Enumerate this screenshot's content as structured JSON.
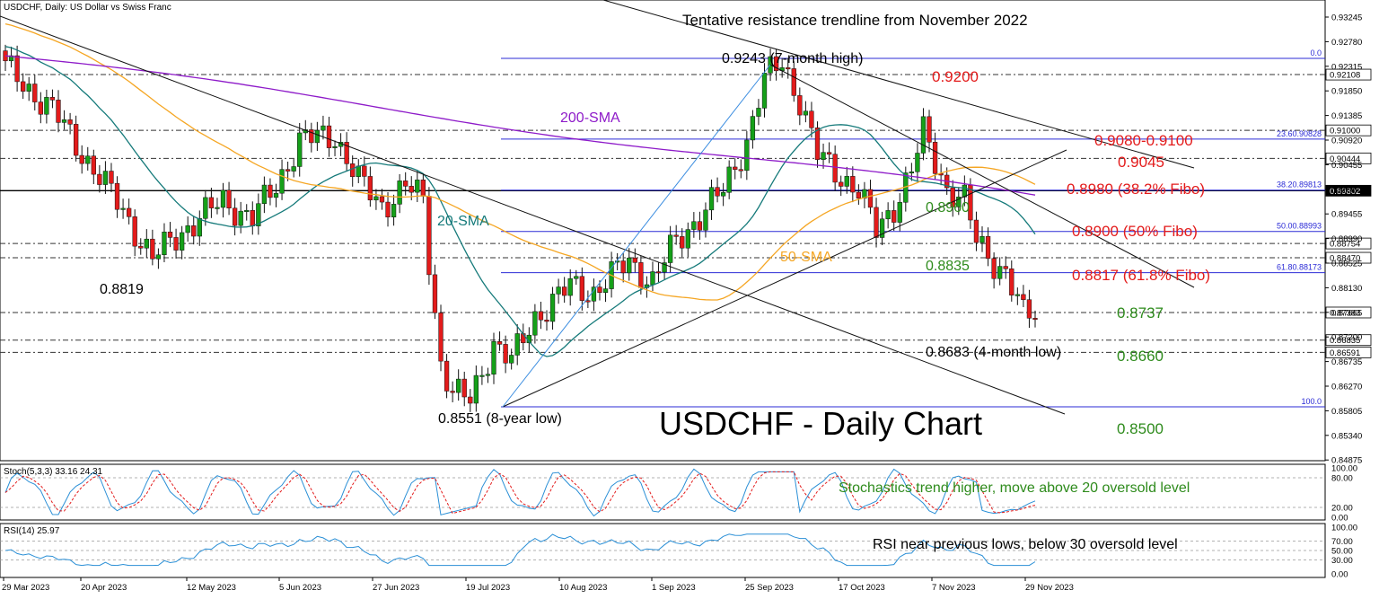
{
  "chart_data": {
    "type": "candlestick",
    "header": {
      "main": "USDCHF, Daily:  US Dollar vs Swiss Franc",
      "stoch": "Stoch(5,3,3) 33.16 24.31",
      "rsi": "RSI(14) 25.97"
    },
    "title": "USDCHF - Daily Chart",
    "ylim": [
      0.846,
      0.9265
    ],
    "price_ticks": [
      "0.93245",
      "0.92780",
      "0.92315",
      "0.91850",
      "0.91385",
      "0.90920",
      "0.90455",
      "0.89950",
      "0.89455",
      "0.88990",
      "0.88525",
      "0.88130",
      "0.87665",
      "0.87200",
      "0.86735",
      "0.86270",
      "0.85805",
      "0.85340",
      "0.84875"
    ],
    "x_labels": [
      "29 Mar 2023",
      "20 Apr 2023",
      "12 May 2023",
      "5 Jun 2023",
      "27 Jun 2023",
      "19 Jul 2023",
      "10 Aug 2023",
      "1 Sep 2023",
      "25 Sep 2023",
      "17 Oct 2023",
      "7 Nov 2023",
      "29 Nov 2023"
    ],
    "price_tags": [
      {
        "value": 0.92108,
        "label": "0.92108",
        "style": "dark"
      },
      {
        "value": 0.91,
        "label": "0.91000",
        "style": "dark"
      },
      {
        "value": 0.90444,
        "label": "0.90444",
        "style": "dark"
      },
      {
        "value": 0.89802,
        "label": "0.89802",
        "style": "black"
      },
      {
        "value": 0.88754,
        "label": "0.88754",
        "style": "dark"
      },
      {
        "value": 0.8847,
        "label": "0.88470",
        "style": "dark"
      },
      {
        "value": 0.87383,
        "label": "0.87383",
        "style": "dark"
      },
      {
        "value": 0.86835,
        "label": "0.86835",
        "style": "dark"
      },
      {
        "value": 0.86591,
        "label": "0.86591",
        "style": "dark"
      }
    ],
    "fib_levels": [
      {
        "label": "0.0",
        "value": 0.9243
      },
      {
        "label": "23.60.90828",
        "value": 0.90828
      },
      {
        "label": "38.20.89813",
        "value": 0.89813
      },
      {
        "label": "50.00.88993",
        "value": 0.88993
      },
      {
        "label": "61.80.88173",
        "value": 0.88173
      },
      {
        "label": "100.0",
        "value": 0.8551
      }
    ],
    "annotations": {
      "resistance": "Tentative resistance trendline from November 2022",
      "high": "0.9243 (7-month high)",
      "low8y": "0.8551 (8-year low)",
      "low4m": "0.8683 (4-month low)",
      "l8819": "0.8819",
      "sma200": "200-SMA",
      "sma20": "20-SMA",
      "sma50": "50-SMA",
      "l8960": "0.8960",
      "l8835": "0.8835",
      "r9200": "0.9200",
      "r9080": "0.9080-0.9100",
      "r9045": "0.9045",
      "r8980": "0.8980 (38.2% Fibo)",
      "r8900": "0.8900 (50% Fibo)",
      "r8817": "0.8817 (61.8% Fibo)",
      "g8737": "0.8737",
      "g8660": "0.8660",
      "g8500": "0.8500",
      "stoch_note": "Stochastics trend higher, move above 20 oversold level",
      "rsi_note": "RSI near previous lows, below 30 oversold level"
    },
    "stoch": {
      "ticks": [
        "100.00",
        "80.00",
        "20.00",
        "0.00"
      ],
      "k": 33.16,
      "d": 24.31
    },
    "rsi": {
      "ticks": [
        "100.00",
        "70.00",
        "50.00",
        "30.00",
        "0.00"
      ],
      "value": 25.97
    },
    "colors": {
      "bull": "#15a019",
      "bear": "#e31b1b",
      "sma20": "#157a7a",
      "sma50": "#f5a623",
      "sma200": "#8e1bc9",
      "fib": "#2b2bd6",
      "red": "#e31b1b",
      "green": "#2e8b1c"
    }
  }
}
